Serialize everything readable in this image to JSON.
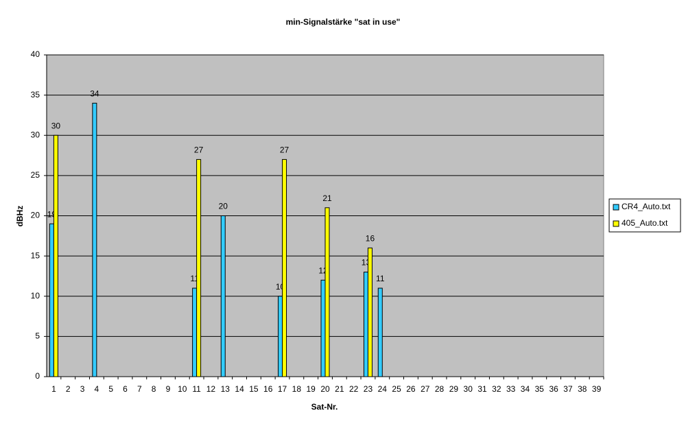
{
  "chart_data": {
    "type": "bar",
    "title": "min-Signalstärke \"sat in use\"",
    "x_label": "Sat-Nr.",
    "y_label": "dBHz",
    "categories": [
      "1",
      "2",
      "3",
      "4",
      "5",
      "6",
      "7",
      "8",
      "9",
      "10",
      "11",
      "12",
      "13",
      "14",
      "15",
      "16",
      "17",
      "18",
      "19",
      "20",
      "21",
      "22",
      "23",
      "24",
      "25",
      "26",
      "27",
      "28",
      "29",
      "30",
      "31",
      "32",
      "33",
      "34",
      "35",
      "36",
      "37",
      "38",
      "39"
    ],
    "series": [
      {
        "name": "CR4_Auto.txt",
        "color": "#33ccff",
        "values": [
          19,
          null,
          null,
          34,
          null,
          null,
          null,
          null,
          null,
          null,
          11,
          null,
          20,
          null,
          null,
          null,
          10,
          null,
          null,
          12,
          null,
          null,
          13,
          11,
          null,
          null,
          null,
          null,
          null,
          null,
          null,
          null,
          null,
          null,
          null,
          null,
          null,
          null,
          null
        ]
      },
      {
        "name": "405_Auto.txt",
        "color": "#ffff00",
        "values": [
          30,
          null,
          null,
          null,
          null,
          null,
          null,
          null,
          null,
          null,
          27,
          null,
          null,
          null,
          null,
          null,
          27,
          null,
          null,
          21,
          null,
          null,
          16,
          null,
          null,
          null,
          null,
          null,
          null,
          null,
          null,
          null,
          null,
          null,
          null,
          null,
          null,
          null,
          null
        ]
      }
    ],
    "ylim": [
      0,
      40
    ],
    "yticks": [
      0,
      5,
      10,
      15,
      20,
      25,
      30,
      35,
      40
    ],
    "grid": true,
    "plot_background": "#c0c0c0",
    "legend": "right"
  }
}
